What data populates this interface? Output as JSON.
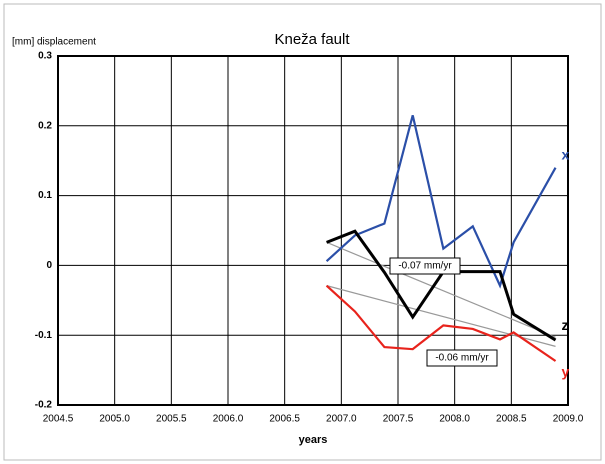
{
  "chart_data": {
    "type": "line",
    "title": "Kneža fault",
    "ylabel": "[mm] displacement",
    "xlabel": "years",
    "x": [
      2006.87,
      2007.12,
      2007.38,
      2007.63,
      2007.9,
      2008.16,
      2008.4,
      2008.52,
      2008.89
    ],
    "series": [
      {
        "name": "x",
        "color": "#2b4fa8",
        "values": [
          0.006,
          0.043,
          0.06,
          0.215,
          0.024,
          0.056,
          -0.029,
          0.033,
          0.14
        ]
      },
      {
        "name": "z",
        "color": "#000000",
        "values": [
          0.033,
          0.049,
          -0.01,
          -0.074,
          -0.009,
          -0.009,
          -0.009,
          -0.07,
          -0.107
        ]
      },
      {
        "name": "y",
        "color": "#e8231c",
        "values": [
          -0.029,
          -0.066,
          -0.117,
          -0.12,
          -0.086,
          -0.091,
          -0.106,
          -0.096,
          -0.137
        ]
      }
    ],
    "trends": [
      {
        "label": "-0.07 mm/yr",
        "color": "#999999",
        "x": [
          2006.87,
          2008.89
        ],
        "values": [
          0.033,
          -0.103
        ]
      },
      {
        "label": "-0.06 mm/yr",
        "color": "#999999",
        "x": [
          2006.87,
          2008.89
        ],
        "values": [
          -0.029,
          -0.116
        ]
      }
    ],
    "xlim": [
      2004.5,
      2009.0
    ],
    "xticks": [
      2004.5,
      {
        "value": 2005.0,
        "label": "2005.0"
      },
      2005.5,
      {
        "value": 2006.0,
        "label": "2006.0"
      },
      2006.5,
      {
        "value": 2007.0,
        "label": "2007.0"
      },
      2007.5,
      {
        "value": 2008.0,
        "label": "2008.0"
      },
      2008.5,
      {
        "value": 2009.0,
        "label": "2009.0"
      }
    ],
    "ylim": [
      -0.2,
      0.3
    ],
    "yticks": [
      -0.2,
      -0.1,
      0,
      0.1,
      0.2,
      0.3
    ],
    "grid": true
  }
}
